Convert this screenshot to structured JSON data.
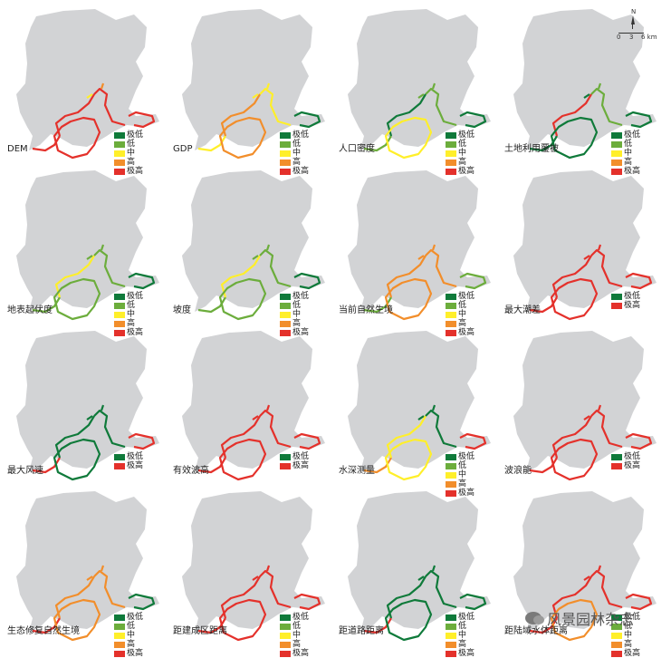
{
  "colors": {
    "land": "#d2d3d5",
    "class_very_low": "#0f7a3a",
    "class_low": "#6cad3c",
    "class_medium": "#ffef2a",
    "class_high": "#f28e2b",
    "class_very_high": "#e4312b"
  },
  "legend_full": [
    "极低",
    "低",
    "中",
    "高",
    "极高"
  ],
  "legend_two": [
    "极低",
    "极高"
  ],
  "panels": [
    {
      "label": "DEM",
      "legend": "full",
      "scheme": "dem"
    },
    {
      "label": "GDP",
      "legend": "full",
      "scheme": "gdp"
    },
    {
      "label": "人口密度",
      "legend": "full",
      "scheme": "pop"
    },
    {
      "label": "土地利用覆被",
      "legend": "full",
      "scheme": "landuse"
    },
    {
      "label": "地表起伏度",
      "legend": "full",
      "scheme": "relief"
    },
    {
      "label": "坡度",
      "legend": "full",
      "scheme": "slope"
    },
    {
      "label": "当前自然生境",
      "legend": "full",
      "scheme": "habitat"
    },
    {
      "label": "最大潮差",
      "legend": "two",
      "scheme": "tide"
    },
    {
      "label": "最大风速",
      "legend": "two",
      "scheme": "wind"
    },
    {
      "label": "有效波高",
      "legend": "two",
      "scheme": "wave"
    },
    {
      "label": "水深测量",
      "legend": "full",
      "scheme": "depth"
    },
    {
      "label": "波浪能",
      "legend": "two",
      "scheme": "waveenergy"
    },
    {
      "label": "生态修复自然生境",
      "legend": "full",
      "scheme": "restore"
    },
    {
      "label": "距建成区距离",
      "legend": "full",
      "scheme": "builtup"
    },
    {
      "label": "距道路距离",
      "legend": "full",
      "scheme": "road"
    },
    {
      "label": "距陆域水体距离",
      "legend": "full",
      "scheme": "water"
    }
  ],
  "compass": {
    "north": "N",
    "scale_labels": [
      "0",
      "3",
      "6 km"
    ]
  },
  "watermark": "风景园林杂志"
}
